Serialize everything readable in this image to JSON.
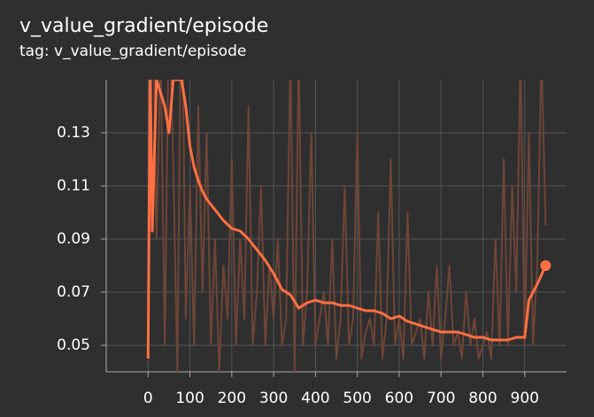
{
  "chart_data": {
    "type": "line",
    "title": "v_value_gradient/episode",
    "subtitle": "tag: v_value_gradient/episode",
    "xlim": [
      -100,
      1000
    ],
    "xticks": [
      0,
      100,
      200,
      300,
      400,
      500,
      600,
      700,
      800,
      900
    ],
    "ylim": [
      0.04,
      0.15
    ],
    "yticks": [
      0.05,
      0.07,
      0.09,
      0.11,
      0.13
    ],
    "grid": true,
    "series": [
      {
        "color": "#6e4537",
        "x": [
          0,
          10,
          20,
          30,
          40,
          50,
          60,
          70,
          80,
          90,
          100,
          110,
          120,
          130,
          140,
          150,
          160,
          170,
          180,
          190,
          200,
          210,
          220,
          230,
          240,
          250,
          260,
          270,
          280,
          290,
          300,
          310,
          320,
          330,
          340,
          350,
          360,
          370,
          380,
          390,
          400,
          410,
          420,
          430,
          440,
          450,
          460,
          470,
          480,
          490,
          500,
          510,
          520,
          530,
          540,
          550,
          560,
          570,
          580,
          590,
          600,
          610,
          620,
          630,
          640,
          650,
          660,
          670,
          680,
          690,
          700,
          710,
          720,
          730,
          740,
          750,
          760,
          770,
          780,
          790,
          800,
          810,
          820,
          830,
          840,
          850,
          860,
          870,
          880,
          890,
          900,
          910,
          920,
          930,
          940,
          950
        ],
        "values": [
          0.045,
          0.2,
          0.09,
          0.16,
          0.05,
          0.18,
          0.12,
          0.04,
          0.2,
          0.06,
          0.11,
          0.05,
          0.14,
          0.07,
          0.13,
          0.05,
          0.09,
          0.04,
          0.08,
          0.06,
          0.12,
          0.05,
          0.09,
          0.06,
          0.14,
          0.05,
          0.07,
          0.11,
          0.05,
          0.08,
          0.06,
          0.09,
          0.05,
          0.06,
          0.16,
          0.04,
          0.16,
          0.05,
          0.07,
          0.13,
          0.05,
          0.06,
          0.07,
          0.05,
          0.09,
          0.045,
          0.06,
          0.11,
          0.05,
          0.06,
          0.13,
          0.045,
          0.055,
          0.06,
          0.05,
          0.1,
          0.045,
          0.06,
          0.12,
          0.05,
          0.06,
          0.045,
          0.1,
          0.05,
          0.055,
          0.06,
          0.045,
          0.07,
          0.05,
          0.08,
          0.045,
          0.06,
          0.08,
          0.05,
          0.055,
          0.045,
          0.07,
          0.05,
          0.06,
          0.045,
          0.05,
          0.055,
          0.045,
          0.09,
          0.05,
          0.12,
          0.05,
          0.11,
          0.07,
          0.16,
          0.05,
          0.13,
          0.05,
          0.08,
          0.16,
          0.095
        ]
      },
      {
        "color": "#ff7043",
        "x": [
          0,
          5,
          10,
          20,
          30,
          40,
          50,
          60,
          80,
          90,
          100,
          110,
          120,
          130,
          140,
          160,
          180,
          200,
          220,
          240,
          260,
          280,
          300,
          320,
          340,
          360,
          380,
          400,
          420,
          440,
          460,
          480,
          500,
          520,
          540,
          560,
          580,
          600,
          620,
          640,
          660,
          680,
          700,
          720,
          740,
          760,
          780,
          800,
          820,
          840,
          860,
          880,
          900,
          910,
          930,
          950
        ],
        "values": [
          0.045,
          0.155,
          0.093,
          0.15,
          0.145,
          0.14,
          0.13,
          0.15,
          0.15,
          0.14,
          0.125,
          0.117,
          0.112,
          0.108,
          0.105,
          0.101,
          0.097,
          0.094,
          0.093,
          0.09,
          0.086,
          0.082,
          0.077,
          0.071,
          0.069,
          0.064,
          0.066,
          0.067,
          0.066,
          0.066,
          0.065,
          0.065,
          0.064,
          0.063,
          0.063,
          0.062,
          0.06,
          0.061,
          0.059,
          0.058,
          0.057,
          0.056,
          0.055,
          0.055,
          0.055,
          0.054,
          0.053,
          0.053,
          0.052,
          0.052,
          0.052,
          0.053,
          0.053,
          0.067,
          0.073,
          0.08
        ]
      }
    ]
  }
}
